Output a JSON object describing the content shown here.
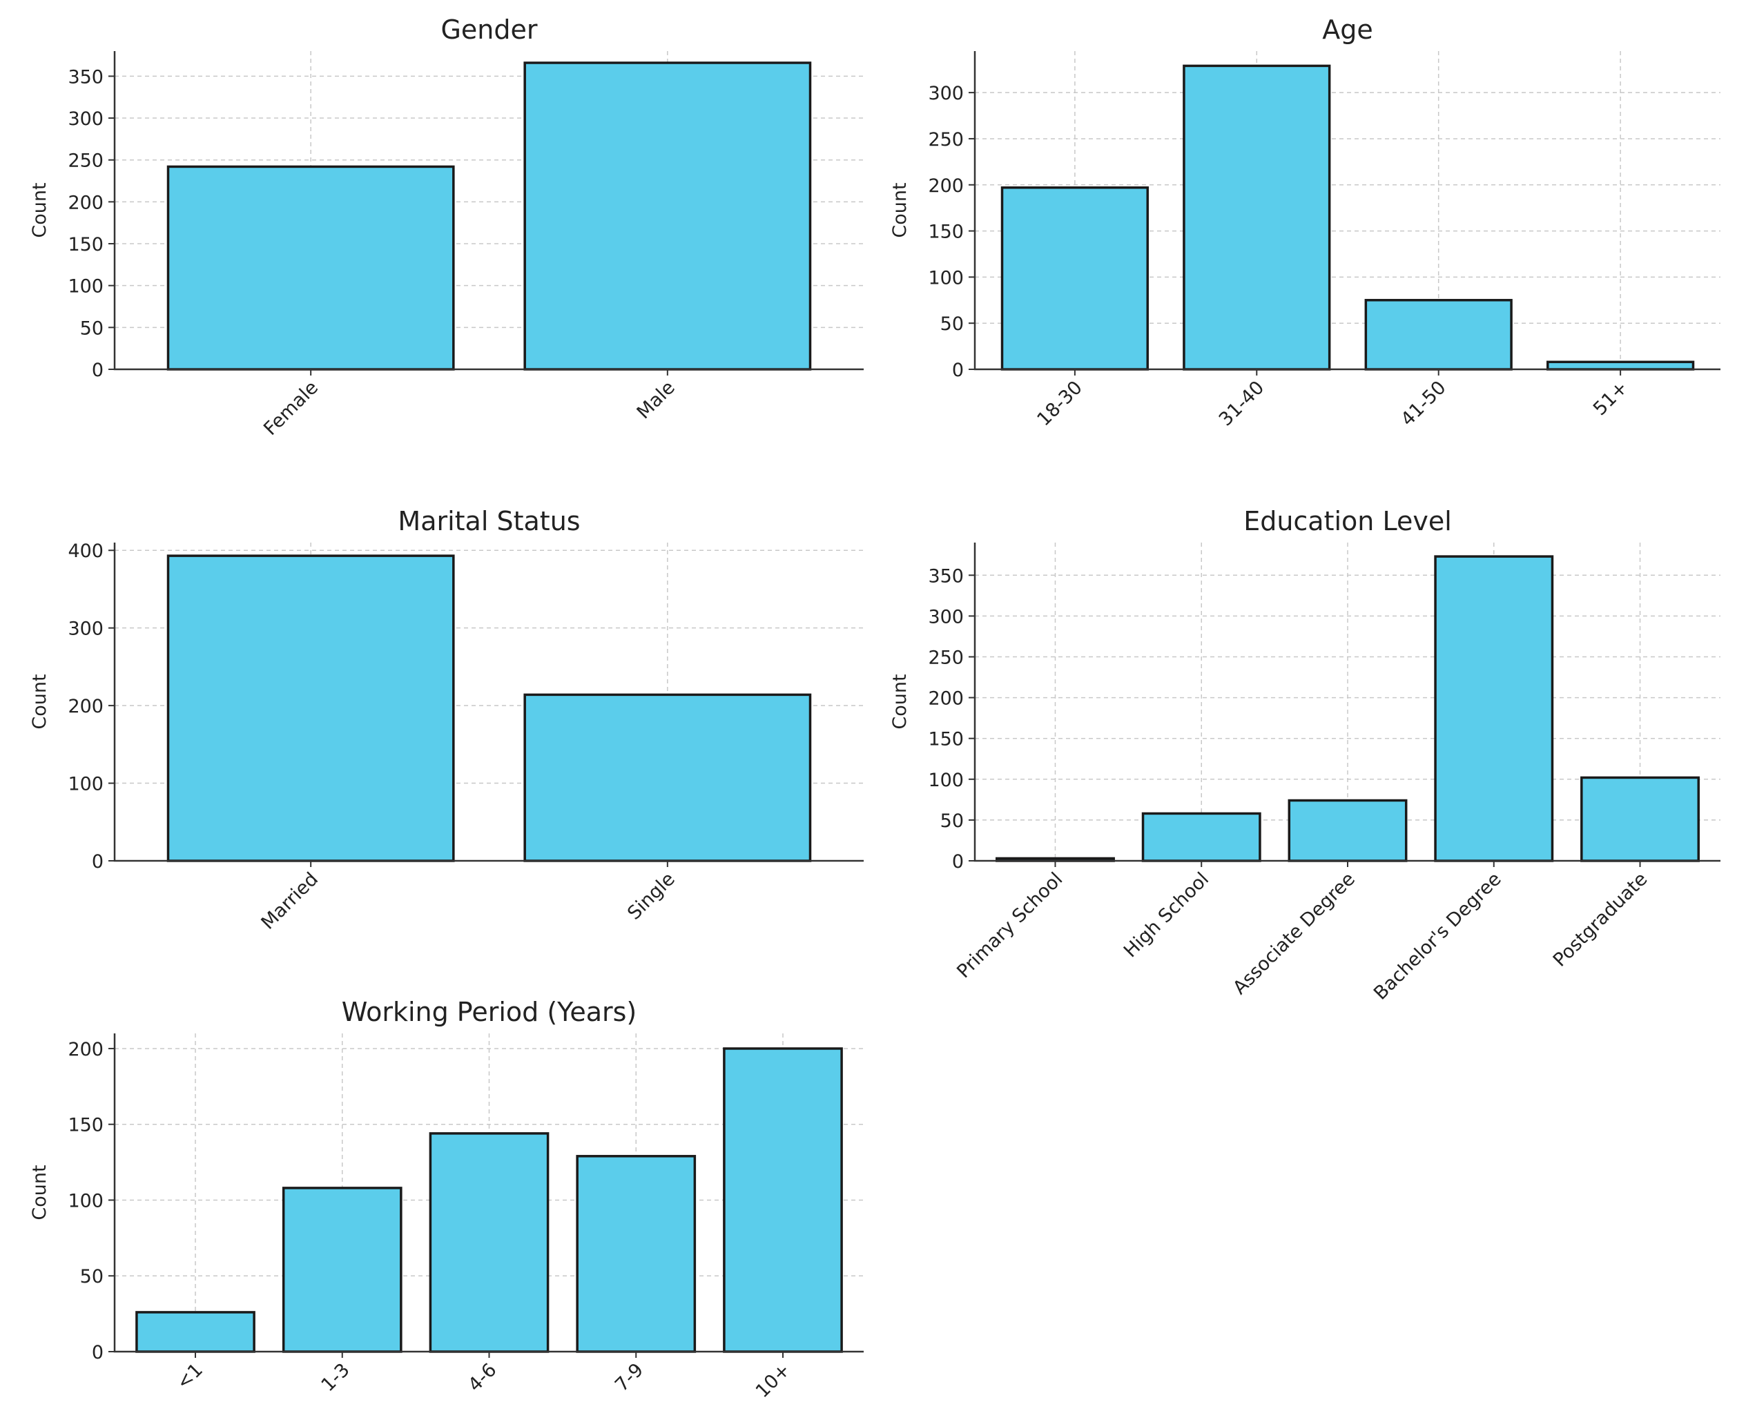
{
  "colors": {
    "bar": "#5BCDEB",
    "edge": "#1a1a1a"
  },
  "chart_data": [
    {
      "type": "bar",
      "title": "Gender",
      "xlabel": "",
      "ylabel": "Count",
      "categories": [
        "Female",
        "Male"
      ],
      "values": [
        242,
        366
      ],
      "ylim": [
        0,
        380
      ],
      "yticks": [
        0,
        50,
        100,
        150,
        200,
        250,
        300,
        350
      ],
      "grid": true
    },
    {
      "type": "bar",
      "title": "Age",
      "xlabel": "",
      "ylabel": "Count",
      "categories": [
        "18-30",
        "31-40",
        "41-50",
        "51+"
      ],
      "values": [
        197,
        329,
        75,
        8
      ],
      "ylim": [
        0,
        345
      ],
      "yticks": [
        0,
        50,
        100,
        150,
        200,
        250,
        300
      ],
      "grid": true
    },
    {
      "type": "bar",
      "title": "Marital Status",
      "xlabel": "",
      "ylabel": "Count",
      "categories": [
        "Married",
        "Single"
      ],
      "values": [
        393,
        214
      ],
      "ylim": [
        0,
        410
      ],
      "yticks": [
        0,
        100,
        200,
        300,
        400
      ],
      "grid": true
    },
    {
      "type": "bar",
      "title": "Education Level",
      "xlabel": "",
      "ylabel": "Count",
      "categories": [
        "Primary School",
        "High School",
        "Associate Degree",
        "Bachelor's Degree",
        "Postgraduate"
      ],
      "values": [
        3,
        58,
        74,
        373,
        102
      ],
      "ylim": [
        0,
        390
      ],
      "yticks": [
        0,
        50,
        100,
        150,
        200,
        250,
        300,
        350
      ],
      "grid": true
    },
    {
      "type": "bar",
      "title": "Working Period (Years)",
      "xlabel": "",
      "ylabel": "Count",
      "categories": [
        "<1",
        "1-3",
        "4-6",
        "7-9",
        "10+"
      ],
      "values": [
        26,
        108,
        144,
        129,
        200
      ],
      "ylim": [
        0,
        210
      ],
      "yticks": [
        0,
        50,
        100,
        150,
        200
      ],
      "grid": true
    }
  ]
}
